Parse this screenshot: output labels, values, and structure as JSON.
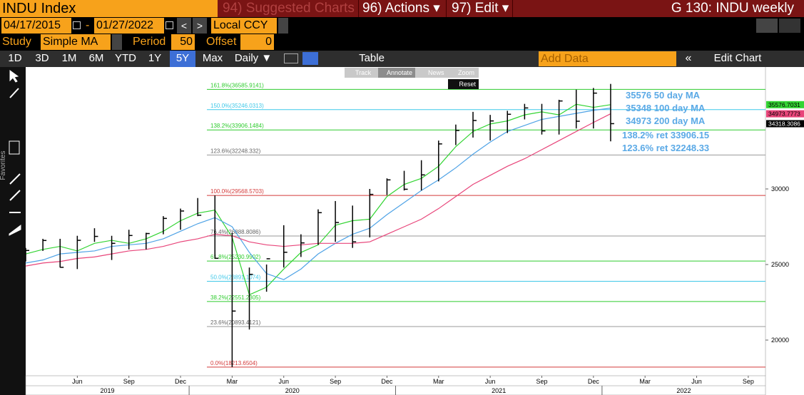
{
  "toolbar": {
    "security": "INDU Index",
    "suggested": "94) Suggested Charts",
    "actions": "96) Actions ▾",
    "edit": "97) Edit ▾",
    "chart_id": "G 130: INDU weekly"
  },
  "range_bar": {
    "start": "04/17/2015",
    "dash": "-",
    "end": "01/27/2022",
    "prev": "<",
    "next": ">",
    "currency": "Local CCY"
  },
  "study_bar": {
    "study_label": "Study",
    "study": "Simple MA",
    "period_label": "Period",
    "period": "50",
    "offset_label": "Offset",
    "offset": "0"
  },
  "period_bar": {
    "buttons": [
      "1D",
      "3D",
      "1M",
      "6M",
      "YTD",
      "1Y",
      "5Y",
      "Max"
    ],
    "selected": 6,
    "frequency": "Daily ▼",
    "table": "Table",
    "add_data": "Add Data",
    "collapse": "«",
    "edit_chart": "Edit Chart"
  },
  "chart_tools": {
    "buttons": [
      "Track",
      "Annotate",
      "News",
      "Zoom"
    ],
    "reset": "Reset",
    "favorites": "Favorites"
  },
  "chart_data": {
    "type": "hlc",
    "x": [
      "2019-03",
      "2019-04",
      "2019-05",
      "2019-06",
      "2019-07",
      "2019-08",
      "2019-09",
      "2019-10",
      "2019-11",
      "2019-12",
      "2020-01",
      "2020-02",
      "2020-03",
      "2020-04",
      "2020-05",
      "2020-06",
      "2020-07",
      "2020-08",
      "2020-09",
      "2020-10",
      "2020-11",
      "2020-12",
      "2021-01",
      "2021-02",
      "2021-03",
      "2021-04",
      "2021-05",
      "2021-06",
      "2021-07",
      "2021-08",
      "2021-09",
      "2021-10",
      "2021-11",
      "2021-12",
      "2022-01"
    ],
    "price": {
      "color": "#000000",
      "high": [
        26100,
        26700,
        26700,
        26900,
        27400,
        26900,
        27300,
        27100,
        28200,
        28700,
        29400,
        29570,
        27100,
        24800,
        25000,
        27600,
        27000,
        28650,
        29200,
        28900,
        30000,
        30700,
        31200,
        31900,
        33200,
        34260,
        35100,
        34900,
        35170,
        35630,
        35630,
        35900,
        36570,
        36680,
        36950
      ],
      "low": [
        25200,
        25900,
        24800,
        24700,
        26500,
        25300,
        26000,
        26000,
        27000,
        27300,
        28200,
        25400,
        18213,
        20700,
        23200,
        24800,
        25500,
        26300,
        26500,
        26100,
        26800,
        29600,
        29900,
        29900,
        30500,
        32900,
        33400,
        33200,
        33700,
        34600,
        33600,
        33600,
        34000,
        34000,
        33150
      ],
      "close": [
        25930,
        26590,
        24815,
        26600,
        26860,
        26400,
        26920,
        27050,
        28050,
        28540,
        28260,
        25410,
        21920,
        24350,
        25380,
        25810,
        26430,
        28430,
        27780,
        26500,
        29640,
        30600,
        29980,
        30930,
        32980,
        33870,
        34530,
        34500,
        34940,
        35360,
        33840,
        35820,
        34480,
        36340,
        34320
      ]
    },
    "moving_averages": [
      {
        "color": "#33d433",
        "values": [
          25700,
          26000,
          26200,
          25900,
          26400,
          26600,
          26400,
          26700,
          27200,
          27900,
          28400,
          28600,
          26800,
          23000,
          23500,
          24700,
          25800,
          26300,
          27600,
          27900,
          28000,
          29500,
          30300,
          30700,
          31500,
          32800,
          33800,
          34300,
          34500,
          34900,
          35100,
          34900,
          35600,
          35400,
          35577
        ]
      },
      {
        "color": "#4fa3e6",
        "values": [
          25100,
          25300,
          25700,
          25800,
          25900,
          26200,
          26300,
          26400,
          26700,
          27200,
          27700,
          28100,
          27500,
          25800,
          24400,
          24000,
          24700,
          25700,
          26400,
          27000,
          27400,
          28300,
          29100,
          29900,
          30600,
          31400,
          32300,
          33100,
          33800,
          34200,
          34600,
          34800,
          35000,
          35200,
          35348
        ]
      },
      {
        "color": "#e8457a",
        "values": [
          24900,
          25100,
          25200,
          25400,
          25500,
          25700,
          25900,
          26000,
          26200,
          26500,
          26700,
          27000,
          26900,
          26500,
          26300,
          26200,
          26300,
          26400,
          26400,
          26400,
          26500,
          27000,
          27500,
          28000,
          28700,
          29500,
          30300,
          30900,
          31500,
          32000,
          32600,
          33200,
          33800,
          34400,
          34973
        ]
      }
    ],
    "fib_levels": [
      {
        "value": 36585.9141,
        "label": "161.8%(36585.9141)",
        "color": "#2ecc2e"
      },
      {
        "value": 35246.0313,
        "label": "150.0%(35246.0313)",
        "color": "#3fc8e8"
      },
      {
        "value": 33906.1484,
        "label": "138.2%(33906.1484)",
        "color": "#2ecc2e"
      },
      {
        "value": 32248.332,
        "label": "123.6%(32248.332)",
        "color": "#999999"
      },
      {
        "value": 29568.5703,
        "label": "100.0%(29568.5703)",
        "color": "#d43a3a"
      },
      {
        "value": 26888.8086,
        "label": "76.4%(26888.8086)",
        "color": "#999999"
      },
      {
        "value": 25230.9902,
        "label": "61.8%(25230.9902)",
        "color": "#2ecc2e"
      },
      {
        "value": 23891.1074,
        "label": "50.0%(23891.1074)",
        "color": "#3fc8e8"
      },
      {
        "value": 22551.2305,
        "label": "38.2%(22551.2305)",
        "color": "#2ecc2e"
      },
      {
        "value": 20893.4121,
        "label": "23.6%(20893.4121)",
        "color": "#999999"
      },
      {
        "value": 18213.6504,
        "label": "0.0%(18213.6504)",
        "color": "#d43a3a"
      }
    ],
    "annotations": [
      {
        "text": "35576 50 day MA",
        "color": "#5aa9e6"
      },
      {
        "text": "35348 100 day MA",
        "color": "#5aa9e6"
      },
      {
        "text": "34973 200 day MA",
        "color": "#5aa9e6"
      },
      {
        "text": "138.2% ret 33906.15",
        "color": "#5aa9e6"
      },
      {
        "text": "123.6% ret 32248.33",
        "color": "#5aa9e6"
      }
    ],
    "price_tags": [
      {
        "value": 35576.7031,
        "label": "35576.7031",
        "color": "#33d433"
      },
      {
        "value": 34973.7773,
        "label": "34973.7773",
        "color": "#e8457a"
      },
      {
        "value": 34318.3086,
        "label": "34318.3086",
        "color": "#000000"
      }
    ],
    "ylim": [
      17640,
      38020
    ],
    "yticks": [
      20000,
      25000,
      30000
    ],
    "xlim": [
      "2019-03",
      "2022-10"
    ],
    "xticks": [
      {
        "value": "2019-06",
        "label": "Jun"
      },
      {
        "value": "2019-09",
        "label": "Sep"
      },
      {
        "value": "2019-12",
        "label": "Dec"
      },
      {
        "value": "2020-03",
        "label": "Mar"
      },
      {
        "value": "2020-06",
        "label": "Jun"
      },
      {
        "value": "2020-09",
        "label": "Sep"
      },
      {
        "value": "2020-12",
        "label": "Dec"
      },
      {
        "value": "2021-03",
        "label": "Mar"
      },
      {
        "value": "2021-06",
        "label": "Jun"
      },
      {
        "value": "2021-09",
        "label": "Sep"
      },
      {
        "value": "2021-12",
        "label": "Dec"
      },
      {
        "value": "2022-03",
        "label": "Mar"
      },
      {
        "value": "2022-06",
        "label": "Jun"
      },
      {
        "value": "2022-09",
        "label": "Sep"
      }
    ],
    "year_ticks": [
      2019,
      2020,
      2021,
      2022
    ]
  }
}
